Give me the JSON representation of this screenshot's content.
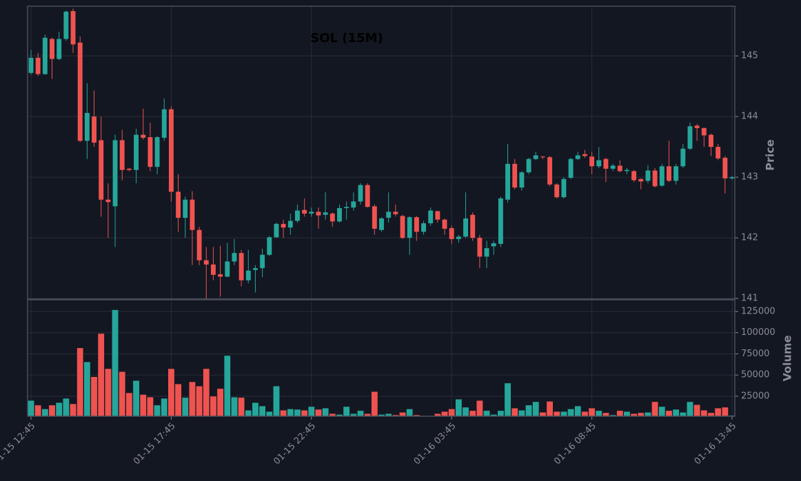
{
  "chart_data": {
    "type": "candlestick",
    "title": "SOL (15M)",
    "categories": [
      "01-15 12:45",
      null,
      null,
      null,
      null,
      null,
      null,
      null,
      null,
      null,
      null,
      null,
      null,
      null,
      null,
      null,
      null,
      null,
      null,
      null,
      "01-15 17:45",
      null,
      null,
      null,
      null,
      null,
      null,
      null,
      null,
      null,
      null,
      null,
      null,
      null,
      null,
      null,
      null,
      null,
      null,
      null,
      "01-15 22:45",
      null,
      null,
      null,
      null,
      null,
      null,
      null,
      null,
      null,
      null,
      null,
      null,
      null,
      null,
      null,
      null,
      null,
      null,
      null,
      "01-16 03:45",
      null,
      null,
      null,
      null,
      null,
      null,
      null,
      null,
      null,
      null,
      null,
      null,
      null,
      null,
      null,
      null,
      null,
      null,
      null,
      "01-16 08:45",
      null,
      null,
      null,
      null,
      null,
      null,
      null,
      null,
      null,
      null,
      null,
      null,
      null,
      null,
      null,
      null,
      null,
      null,
      null,
      "01-16 13:45"
    ],
    "open": [
      144.72,
      144.97,
      144.7,
      145.28,
      144.95,
      145.28,
      145.74,
      145.22,
      143.6,
      144.0,
      143.61,
      142.63,
      142.52,
      143.61,
      143.14,
      143.12,
      143.7,
      143.66,
      143.17,
      143.65,
      144.12,
      142.76,
      142.33,
      142.63,
      142.13,
      141.63,
      141.56,
      141.4,
      141.36,
      141.61,
      141.75,
      141.3,
      141.47,
      141.5,
      141.72,
      142.01,
      142.23,
      142.17,
      142.28,
      142.46,
      142.4,
      142.43,
      142.38,
      142.4,
      142.27,
      142.49,
      142.5,
      142.6,
      142.87,
      142.52,
      142.13,
      142.33,
      142.43,
      142.36,
      142.0,
      142.34,
      142.1,
      142.24,
      142.44,
      142.3,
      142.16,
      141.98,
      142.02,
      142.38,
      142.0,
      141.69,
      141.86,
      141.9,
      142.63,
      143.22,
      142.83,
      143.08,
      143.3,
      143.34,
      143.33,
      142.88,
      142.67,
      142.99,
      143.3,
      143.38,
      143.34,
      143.18,
      143.3,
      143.14,
      143.19,
      143.1,
      143.1,
      142.97,
      142.94,
      143.11,
      142.86,
      143.18,
      142.94,
      143.18,
      143.47,
      143.85,
      143.81,
      143.7,
      143.5,
      143.32,
      142.98
    ],
    "high": [
      145.1,
      145.05,
      145.35,
      145.3,
      145.4,
      145.75,
      145.78,
      145.32,
      144.55,
      144.43,
      144.0,
      142.9,
      143.7,
      143.78,
      143.15,
      143.8,
      144.13,
      143.9,
      143.68,
      144.3,
      144.17,
      143.05,
      142.68,
      142.77,
      142.18,
      141.85,
      141.85,
      141.87,
      141.92,
      141.98,
      141.8,
      141.8,
      141.55,
      141.82,
      142.03,
      142.25,
      142.3,
      142.4,
      142.55,
      142.65,
      142.5,
      142.5,
      142.75,
      142.42,
      142.55,
      142.6,
      142.75,
      142.9,
      142.9,
      142.55,
      142.34,
      142.75,
      142.55,
      142.38,
      142.36,
      142.36,
      142.28,
      142.5,
      142.45,
      142.32,
      142.2,
      142.05,
      142.75,
      142.42,
      142.05,
      141.95,
      141.95,
      142.68,
      143.55,
      143.3,
      143.1,
      143.32,
      143.42,
      143.35,
      143.35,
      142.9,
      143.0,
      143.32,
      143.42,
      143.45,
      143.42,
      143.5,
      143.32,
      143.22,
      143.28,
      143.15,
      143.12,
      142.98,
      143.2,
      143.15,
      143.22,
      143.6,
      143.22,
      143.55,
      143.9,
      143.88,
      143.82,
      143.72,
      143.55,
      143.35,
      143.02
    ],
    "low": [
      144.69,
      144.67,
      144.69,
      144.62,
      144.93,
      145.25,
      145.05,
      143.58,
      143.3,
      143.5,
      142.35,
      142.0,
      141.85,
      142.95,
      143.1,
      142.9,
      143.62,
      143.1,
      143.05,
      143.6,
      142.6,
      142.1,
      142.0,
      141.55,
      141.55,
      141.0,
      141.3,
      141.03,
      141.35,
      141.55,
      141.2,
      141.25,
      141.1,
      141.35,
      141.7,
      142.0,
      142.0,
      142.05,
      142.25,
      142.35,
      142.35,
      142.15,
      142.3,
      142.18,
      142.25,
      142.3,
      142.45,
      142.55,
      142.5,
      142.05,
      142.1,
      142.25,
      142.35,
      141.98,
      141.72,
      141.95,
      142.05,
      142.2,
      142.25,
      142.05,
      141.9,
      141.92,
      142.0,
      141.95,
      141.5,
      141.5,
      141.72,
      141.85,
      142.58,
      142.8,
      142.78,
      143.05,
      143.28,
      143.3,
      142.85,
      142.65,
      142.65,
      142.97,
      143.28,
      143.32,
      143.05,
      143.15,
      142.92,
      143.1,
      143.08,
      143.05,
      142.92,
      142.8,
      142.9,
      142.83,
      142.84,
      142.92,
      142.88,
      143.15,
      143.45,
      143.6,
      143.5,
      143.35,
      143.28,
      142.73,
      142.96
    ],
    "close": [
      144.97,
      144.7,
      145.3,
      144.95,
      145.28,
      145.73,
      145.19,
      143.6,
      144.06,
      143.57,
      142.63,
      142.59,
      143.61,
      143.12,
      143.12,
      143.7,
      143.65,
      143.17,
      143.66,
      144.12,
      142.76,
      142.33,
      142.63,
      142.13,
      141.63,
      141.56,
      141.39,
      141.36,
      141.61,
      141.75,
      141.3,
      141.46,
      141.5,
      141.72,
      142.01,
      142.23,
      142.17,
      142.28,
      142.45,
      142.4,
      142.43,
      142.37,
      142.42,
      142.27,
      142.49,
      142.51,
      142.6,
      142.87,
      142.51,
      142.15,
      142.32,
      142.43,
      142.39,
      142.0,
      142.34,
      142.1,
      142.24,
      142.45,
      142.3,
      142.15,
      141.98,
      142.02,
      142.32,
      142.0,
      141.69,
      141.83,
      141.91,
      142.65,
      143.22,
      142.83,
      143.08,
      143.3,
      143.36,
      143.33,
      142.88,
      142.67,
      142.97,
      143.3,
      143.36,
      143.35,
      143.18,
      143.28,
      143.14,
      143.19,
      143.1,
      143.12,
      142.95,
      142.93,
      143.11,
      142.85,
      143.18,
      142.94,
      143.18,
      143.47,
      143.84,
      143.81,
      143.69,
      143.5,
      143.31,
      142.98,
      143.0
    ],
    "up_color": "#26a69a",
    "down_color": "#ef5350",
    "ylabel": "Price",
    "ylim": [
      140.99,
      145.82
    ],
    "yticks": [
      141,
      142,
      143,
      144,
      145
    ],
    "grid": true,
    "volume": {
      "label": "Volume",
      "values": [
        20000,
        14500,
        10000,
        14500,
        17500,
        22500,
        16000,
        82000,
        65500,
        48000,
        99000,
        57500,
        127000,
        54000,
        29000,
        43500,
        27000,
        24000,
        14500,
        22500,
        57500,
        39500,
        23500,
        42000,
        37000,
        57500,
        25000,
        34000,
        73000,
        24000,
        23500,
        8500,
        17500,
        13500,
        7000,
        37000,
        8500,
        10000,
        9500,
        8500,
        12800,
        9500,
        11000,
        4500,
        3500,
        12800,
        4500,
        8000,
        4500,
        30500,
        3500,
        4500,
        3000,
        6000,
        10000,
        3000,
        2000,
        2000,
        4500,
        7000,
        10000,
        21500,
        12000,
        8000,
        20000,
        8000,
        3500,
        8000,
        40500,
        11000,
        8500,
        14500,
        18500,
        6000,
        19000,
        7000,
        7000,
        10000,
        13500,
        7000,
        11000,
        8000,
        5500,
        3000,
        8000,
        7000,
        4500,
        5500,
        6000,
        18500,
        12800,
        8000,
        9500,
        6000,
        18500,
        15000,
        8500,
        5500,
        11000,
        12000,
        2500
      ],
      "ylim": [
        1400,
        138800
      ],
      "yticks": [
        25000,
        50000,
        75000,
        100000,
        125000
      ]
    }
  }
}
